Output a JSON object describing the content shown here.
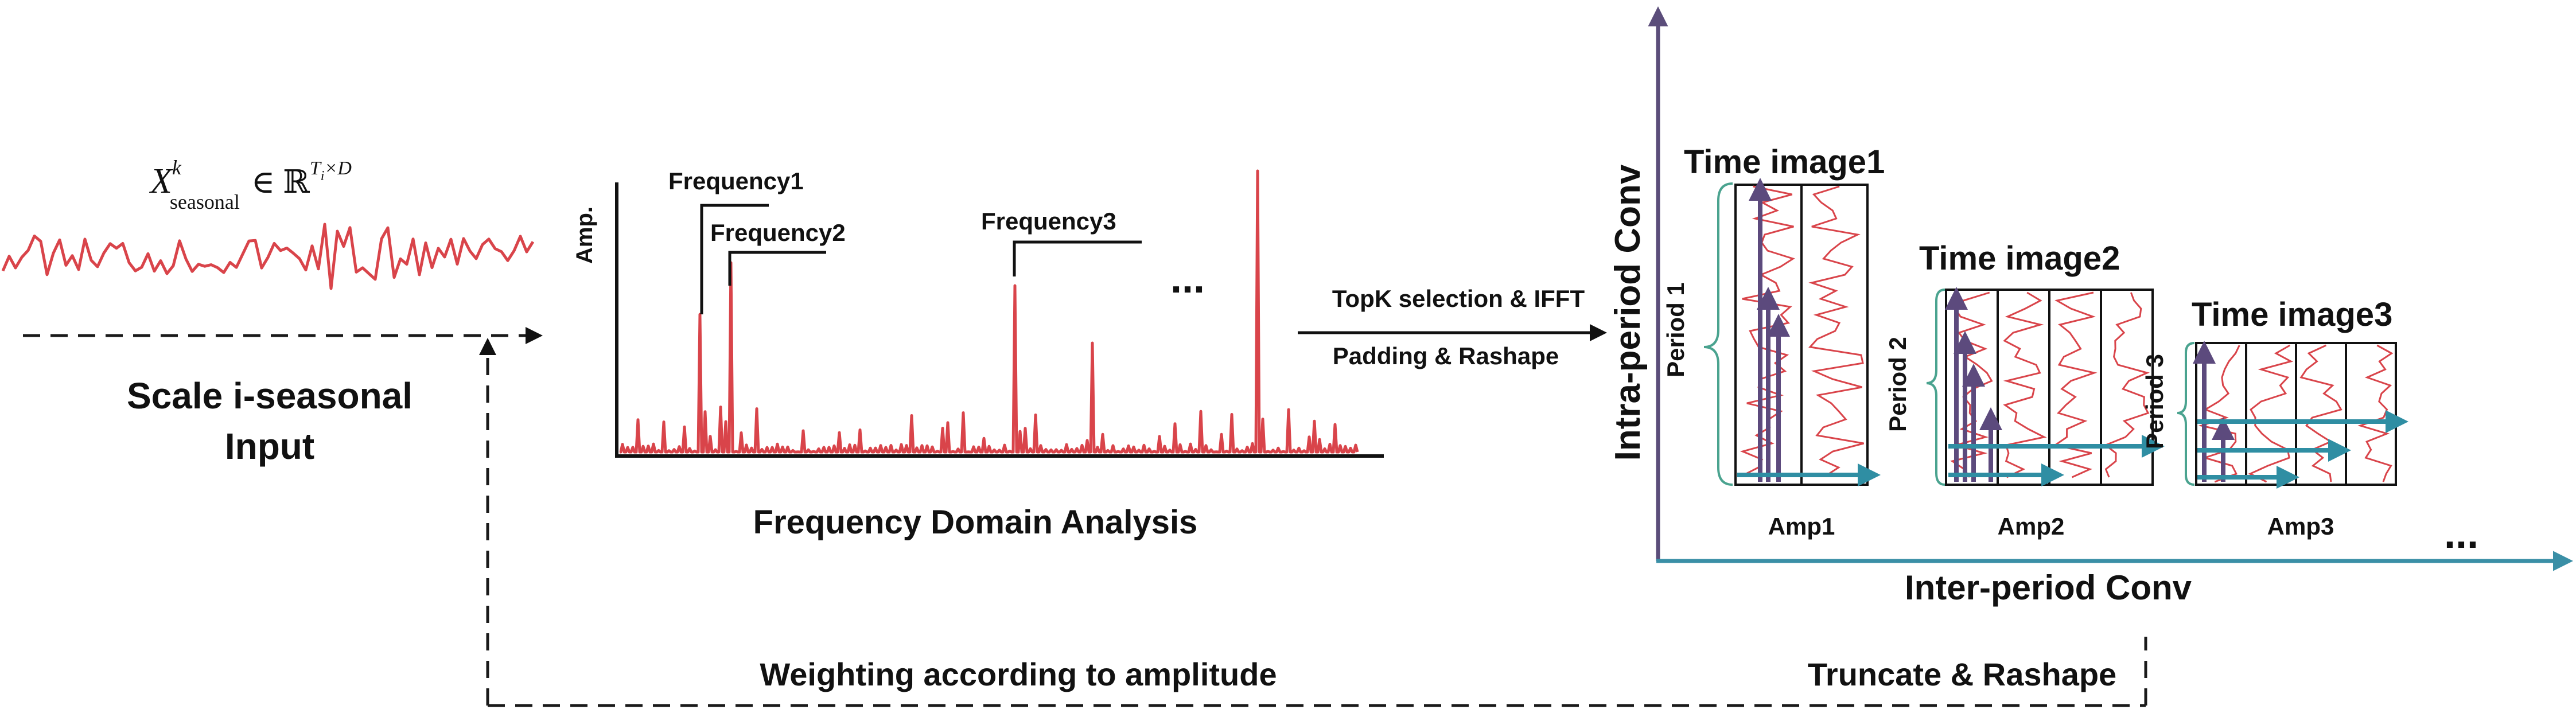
{
  "colors": {
    "signal_red": "#d9444a",
    "purple_arrow": "#5c4a7d",
    "teal_arrow": "#2f8ea3",
    "axis_purple": "#5b4d7a",
    "axis_teal": "#3a8fa6",
    "brace_green": "#4aa38f",
    "dashed": "#1a1a1a"
  },
  "input": {
    "formula_base": "X",
    "formula_sup": "k",
    "formula_sub": "seasonal",
    "formula_in": "∈",
    "formula_set": "ℝ",
    "formula_exp_T": "T",
    "formula_exp_i": "i",
    "formula_exp_rest": "×D",
    "label_line1": "Scale i-seasonal",
    "label_line2": "Input"
  },
  "spectrum": {
    "amp_label": "Amp.",
    "freq1": "Frequency1",
    "freq2": "Frequency2",
    "freq3": "Frequency3",
    "ellipsis": "...",
    "caption": "Frequency Domain Analysis"
  },
  "transform": {
    "line1": "TopK selection & IFFT",
    "line2": "Padding & Rashape"
  },
  "images": {
    "y_axis_label": "Intra-period Conv",
    "x_axis_label": "Inter-period Conv",
    "ellipsis": "...",
    "items": [
      {
        "title": "Time image1",
        "period": "Period 1",
        "amp": "Amp1"
      },
      {
        "title": "Time image2",
        "period": "Period 2",
        "amp": "Amp2"
      },
      {
        "title": "Time image3",
        "period": "Period 3",
        "amp": "Amp3"
      }
    ]
  },
  "feedback": {
    "left_label": "Weighting  according to amplitude",
    "right_label": "Truncate & Rashape"
  }
}
